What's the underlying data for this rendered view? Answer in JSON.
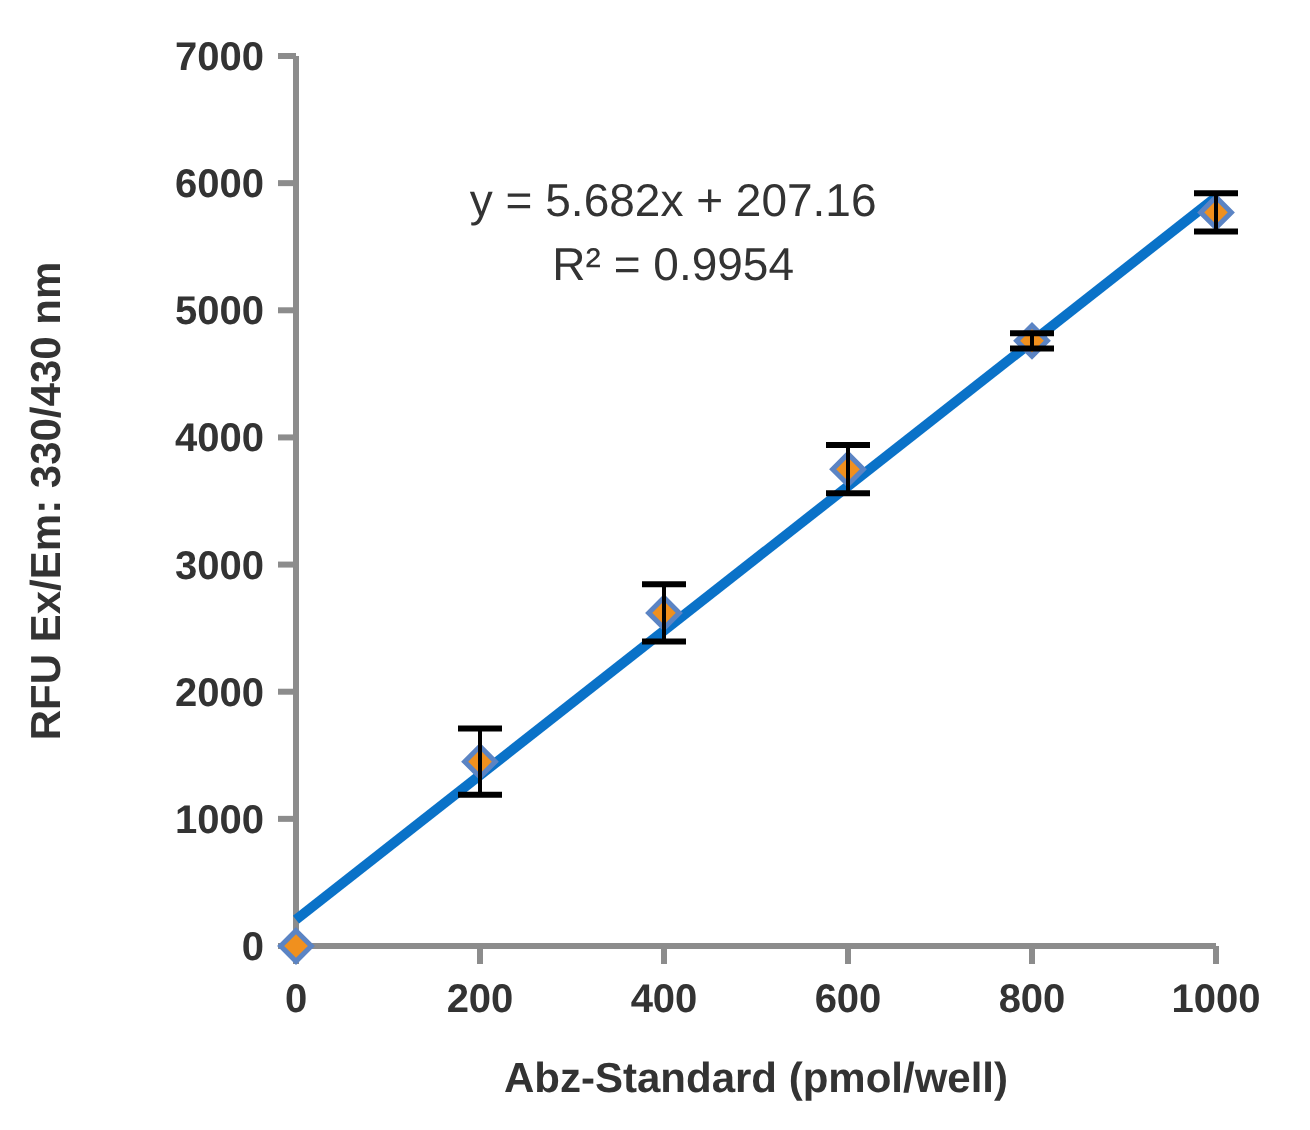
{
  "chart_data": {
    "type": "scatter",
    "xlabel": "Abz-Standard (pmol/well)",
    "ylabel": "RFU Ex/Em: 330/430 nm",
    "annotations": [
      "y = 5.682x + 207.16",
      "R² = 0.9954"
    ],
    "xlim": [
      0,
      1000
    ],
    "xticks": [
      0,
      200,
      400,
      600,
      800,
      1000
    ],
    "ylim": [
      0,
      7000
    ],
    "yticks": [
      0,
      1000,
      2000,
      3000,
      4000,
      5000,
      6000,
      7000
    ],
    "grid": false,
    "series": [
      {
        "type": "line",
        "color": "#0a72c8",
        "x": [
          0,
          1000
        ],
        "values": [
          207,
          5889
        ],
        "marker": "none",
        "line_style": "solid"
      },
      {
        "color": "#f0901e",
        "x": [
          0,
          200,
          400,
          600,
          800,
          1000
        ],
        "values": [
          0,
          1450,
          2620,
          3750,
          4760,
          5770
        ],
        "errors": [
          null,
          260,
          225,
          190,
          60,
          150
        ],
        "marker": "diamond"
      }
    ]
  }
}
